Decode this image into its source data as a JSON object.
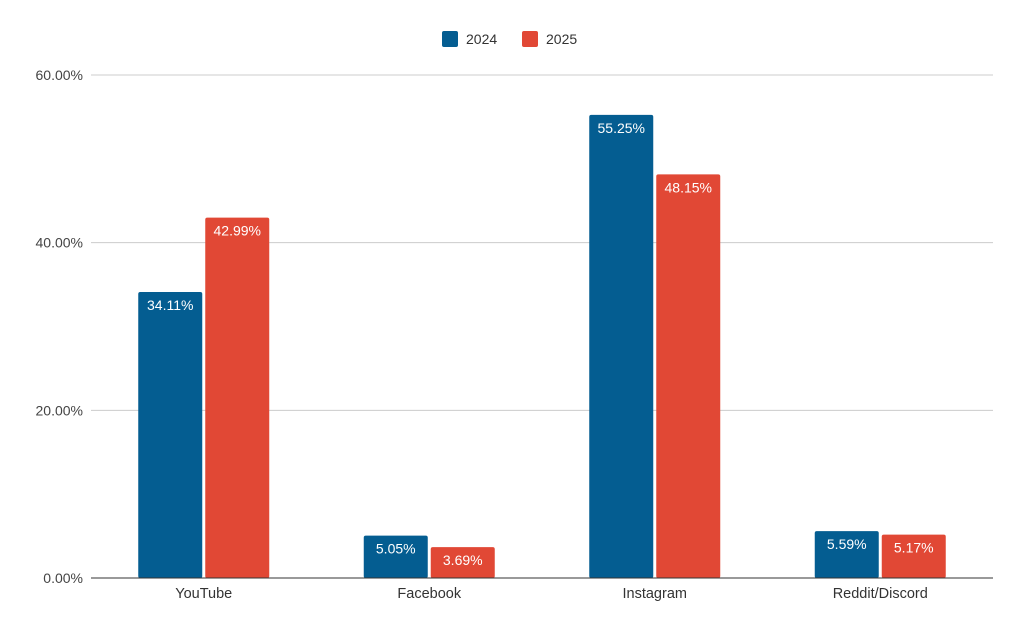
{
  "chart_data": {
    "type": "bar",
    "title": "",
    "xlabel": "",
    "ylabel": "",
    "categories": [
      "YouTube",
      "Facebook",
      "Instagram",
      "Reddit/Discord"
    ],
    "series": [
      {
        "name": "2024",
        "color": "#045d91",
        "values": [
          34.11,
          5.05,
          55.25,
          5.59
        ],
        "labels": [
          "34.11%",
          "5.05%",
          "55.25%",
          "5.59%"
        ]
      },
      {
        "name": "2025",
        "color": "#e14835",
        "values": [
          42.99,
          3.69,
          48.15,
          5.17
        ],
        "labels": [
          "42.99%",
          "3.69%",
          "48.15%",
          "5.17%"
        ]
      }
    ],
    "ylim": [
      0,
      60
    ],
    "yticks": [
      0,
      20,
      40,
      60
    ],
    "ytick_labels": [
      "0.00%",
      "20.00%",
      "40.00%",
      "60.00%"
    ],
    "grid": true,
    "legend": "top-center"
  }
}
